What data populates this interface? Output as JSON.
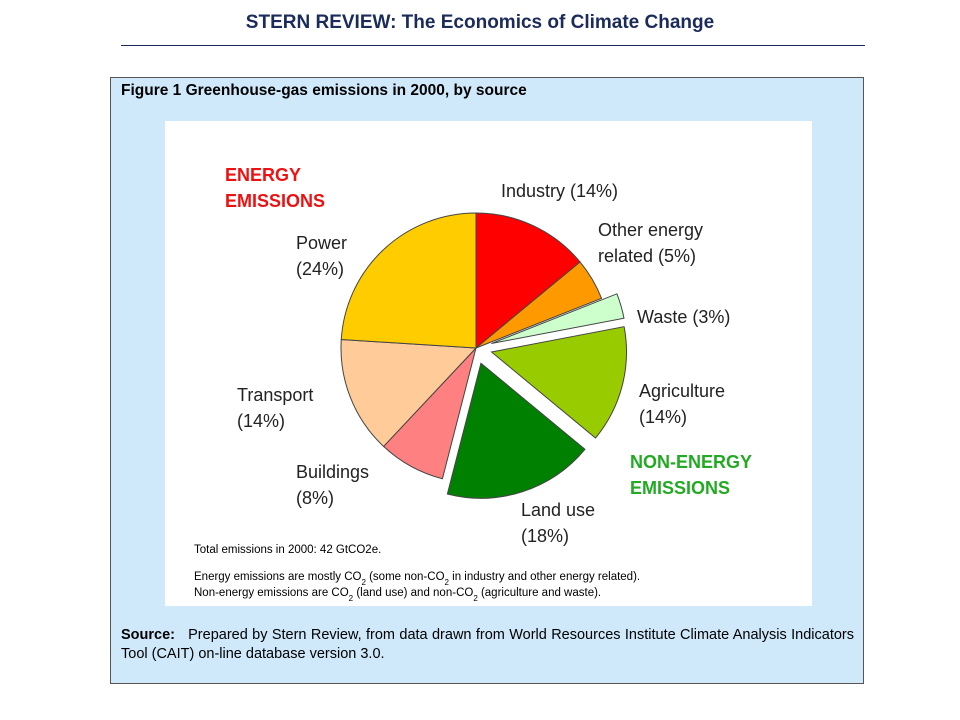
{
  "header": {
    "title": "STERN REVIEW: The Economics of Climate Change"
  },
  "figure": {
    "caption": "Figure 1 Greenhouse-gas emissions in 2000, by source",
    "source_label": "Source:",
    "source_text": "Prepared by Stern Review, from data drawn from World Resources Institute Climate Analysis Indicators Tool (CAIT) on-line database version 3.0."
  },
  "chart_data": {
    "type": "pie",
    "slices": [
      {
        "label": "Industry",
        "line1": "Industry (14%)",
        "line2": "",
        "value": 14,
        "color": "#ff0000",
        "group": "energy"
      },
      {
        "label": "Other energy related",
        "line1": "Other energy",
        "line2": "related (5%)",
        "value": 5,
        "color": "#ff9900",
        "group": "energy"
      },
      {
        "label": "Waste",
        "line1": "Waste (3%)",
        "line2": "",
        "value": 3,
        "color": "#ccffcc",
        "group": "non-energy"
      },
      {
        "label": "Agriculture",
        "line1": "Agriculture",
        "line2": "(14%)",
        "value": 14,
        "color": "#99cc00",
        "group": "non-energy"
      },
      {
        "label": "Land use",
        "line1": "Land use",
        "line2": "(18%)",
        "value": 18,
        "color": "#008000",
        "group": "non-energy"
      },
      {
        "label": "Buildings",
        "line1": "Buildings",
        "line2": "(8%)",
        "value": 8,
        "color": "#ff8080",
        "group": "energy"
      },
      {
        "label": "Transport",
        "line1": "Transport",
        "line2": "(14%)",
        "value": 14,
        "color": "#ffcc99",
        "group": "energy"
      },
      {
        "label": "Power",
        "line1": "Power",
        "line2": "(24%)",
        "value": 24,
        "color": "#ffcc00",
        "group": "energy"
      }
    ],
    "groups": [
      {
        "key": "energy",
        "line1": "ENERGY",
        "line2": "EMISSIONS",
        "color": "#ee1111"
      },
      {
        "key": "non-energy",
        "line1": "NON-ENERGY",
        "line2": "EMISSIONS",
        "color": "#22aa22"
      }
    ],
    "notes": {
      "total": "Total emissions in 2000: 42 GtCO2e.",
      "energy_note": "Energy emissions are mostly CO2 (some non-CO2 in industry and other energy related).",
      "non_energy_note": "Non-energy emissions are CO2 (land use) and non-CO2 (agriculture and waste)."
    }
  }
}
